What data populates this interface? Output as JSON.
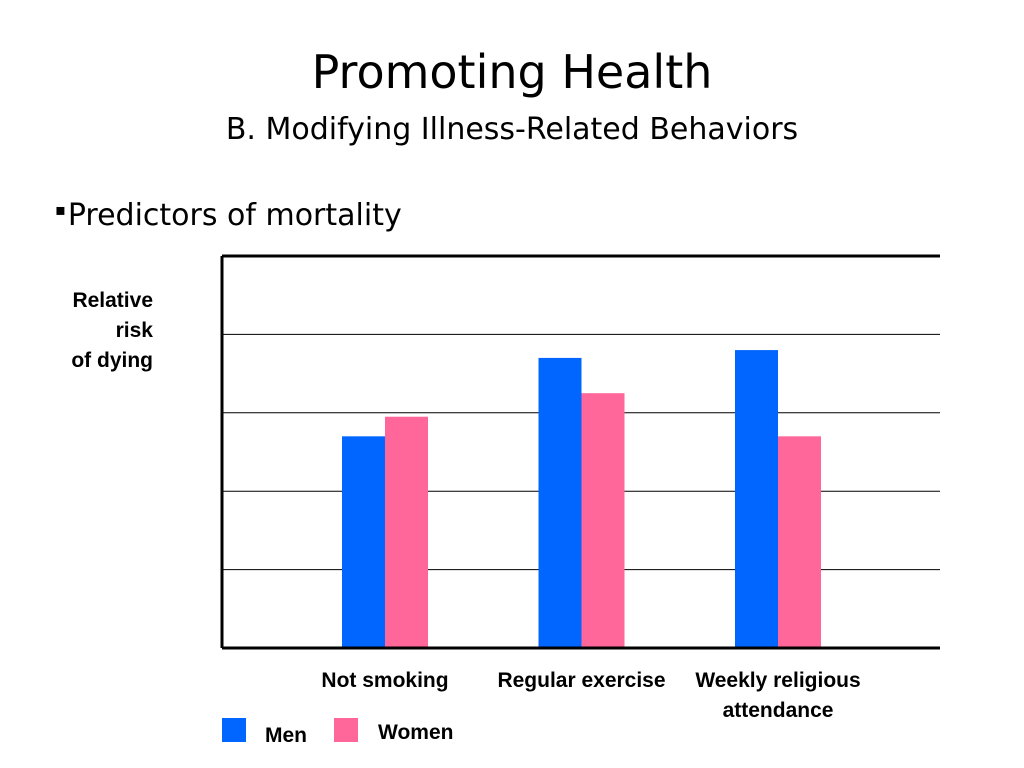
{
  "slide": {
    "title": "Promoting Health",
    "subtitle": "B. Modifying Illness-Related Behaviors",
    "bullet": "Predictors of mortality",
    "bullet_mark": "▪"
  },
  "chart_data": {
    "type": "bar",
    "ylabel": "Relative\nrisk\nof dying",
    "xlabel": "",
    "ylim": [
      0,
      1.0
    ],
    "grid": true,
    "categories": [
      [
        "Not smoking"
      ],
      [
        "Regular exercise"
      ],
      [
        "Weekly religious",
        "attendance"
      ]
    ],
    "series": [
      {
        "name": "Men",
        "color": "#0066FF",
        "values": [
          0.54,
          0.74,
          0.76
        ]
      },
      {
        "name": "Women",
        "color": "#FF6699",
        "values": [
          0.59,
          0.65,
          0.54
        ]
      }
    ],
    "legend_position": "bottom-left"
  }
}
